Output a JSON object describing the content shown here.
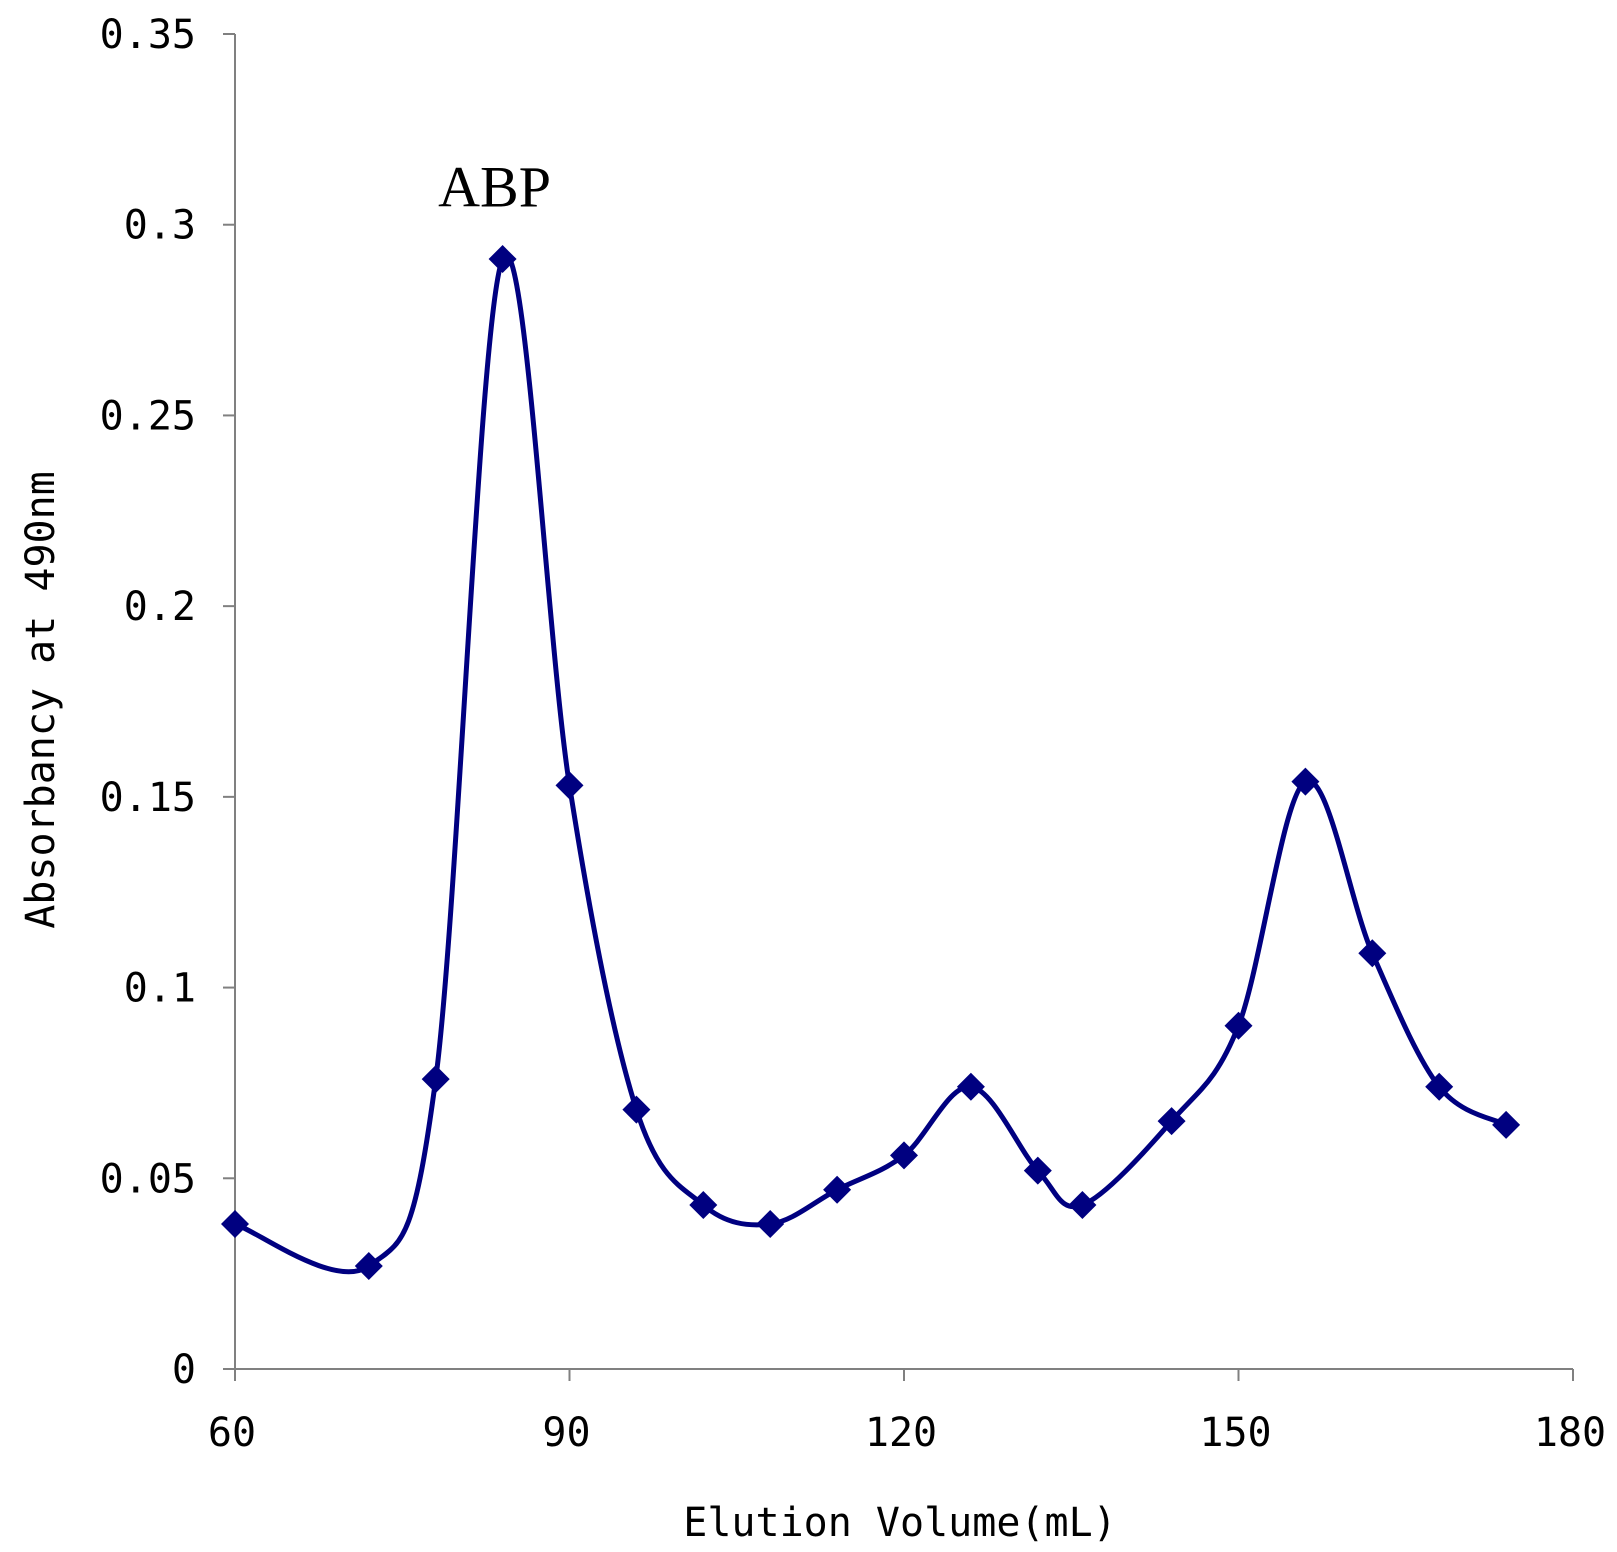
{
  "chart_data": {
    "type": "line",
    "title": "",
    "xlabel": "Elution Volume(mL)",
    "ylabel": "Absorbancy at 490nm",
    "xlim": [
      60,
      180
    ],
    "ylim": [
      0,
      0.35
    ],
    "x_ticks": [
      "60",
      "90",
      "120",
      "150",
      "180"
    ],
    "y_ticks": [
      "0",
      "0.05",
      "0.1",
      "0.15",
      "0.2",
      "0.25",
      "0.3",
      "0.35"
    ],
    "grid": false,
    "legend": "none",
    "smooth": true,
    "color": "#000080",
    "marker": "diamond",
    "annotations": [
      {
        "text": "ABP",
        "x": 84,
        "y": 0.31
      }
    ],
    "series": [
      {
        "x": [
          60,
          72,
          78,
          84,
          90,
          96,
          102,
          108,
          114,
          120,
          126,
          132,
          136,
          144,
          150,
          156,
          162,
          168,
          174
        ],
        "y": [
          0.038,
          0.027,
          0.076,
          0.291,
          0.153,
          0.068,
          0.043,
          0.038,
          0.047,
          0.056,
          0.074,
          0.052,
          0.043,
          0.065,
          0.09,
          0.154,
          0.109,
          0.074,
          0.064
        ]
      }
    ]
  }
}
